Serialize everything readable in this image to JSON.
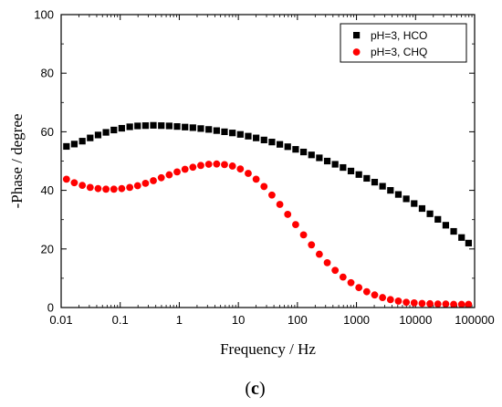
{
  "chart_data": {
    "type": "scatter",
    "x_scale": "log",
    "xlabel": "Frequency / Hz",
    "ylabel": "-Phase / degree",
    "xlim": [
      0.01,
      100000
    ],
    "ylim": [
      0,
      100
    ],
    "x_ticks": [
      0.01,
      0.1,
      1,
      10,
      100,
      1000,
      10000,
      100000
    ],
    "x_tick_labels": [
      "0.01",
      "0.1",
      "1",
      "10",
      "100",
      "1000",
      "10000",
      "100000"
    ],
    "y_ticks": [
      0,
      20,
      40,
      60,
      80,
      100
    ],
    "y_tick_labels": [
      "0",
      "20",
      "40",
      "60",
      "80",
      "100"
    ],
    "grid": false,
    "legend_position": "top-right",
    "panel_label": {
      "open": "(",
      "letter": "c",
      "close": ")"
    },
    "series": [
      {
        "name": "pH=3, HCO",
        "marker": "square",
        "color": "#000000",
        "x": [
          0.0123,
          0.0167,
          0.0228,
          0.031,
          0.0422,
          0.0574,
          0.0781,
          0.106,
          0.145,
          0.197,
          0.268,
          0.364,
          0.496,
          0.675,
          0.918,
          1.25,
          1.7,
          2.31,
          3.15,
          4.29,
          5.83,
          7.94,
          10.8,
          14.7,
          20.0,
          27.2,
          37.0,
          50.4,
          68.5,
          93.3,
          127,
          173,
          235,
          320,
          435,
          592,
          806,
          1097,
          1492,
          2031,
          2763,
          3760,
          5117,
          6963,
          9475,
          12893,
          17544,
          23873,
          32486,
          44206,
          60153,
          79000
        ],
        "y": [
          55.0,
          55.8,
          56.8,
          57.9,
          58.9,
          59.8,
          60.6,
          61.2,
          61.7,
          62.0,
          62.1,
          62.2,
          62.1,
          62.0,
          61.8,
          61.6,
          61.4,
          61.1,
          60.8,
          60.4,
          60.0,
          59.6,
          59.1,
          58.5,
          57.9,
          57.2,
          56.5,
          55.7,
          54.9,
          54.0,
          53.1,
          52.1,
          51.1,
          50.0,
          48.9,
          47.8,
          46.6,
          45.4,
          44.1,
          42.8,
          41.4,
          40.0,
          38.6,
          37.1,
          35.5,
          33.8,
          32.0,
          30.1,
          28.1,
          26.0,
          23.9,
          22.0
        ]
      },
      {
        "name": "pH=3, CHQ",
        "marker": "circle",
        "color": "#ff0000",
        "x": [
          0.0123,
          0.0167,
          0.0228,
          0.031,
          0.0422,
          0.0574,
          0.0781,
          0.106,
          0.145,
          0.197,
          0.268,
          0.364,
          0.496,
          0.675,
          0.918,
          1.25,
          1.7,
          2.31,
          3.15,
          4.29,
          5.83,
          7.94,
          10.8,
          14.7,
          20.0,
          27.2,
          37.0,
          50.4,
          68.5,
          93.3,
          127,
          173,
          235,
          320,
          435,
          592,
          806,
          1097,
          1492,
          2031,
          2763,
          3760,
          5117,
          6963,
          9475,
          12893,
          17544,
          23873,
          32486,
          44206,
          60153,
          79000
        ],
        "y": [
          43.8,
          42.6,
          41.7,
          41.0,
          40.6,
          40.4,
          40.4,
          40.6,
          41.0,
          41.6,
          42.4,
          43.3,
          44.3,
          45.3,
          46.3,
          47.2,
          47.9,
          48.5,
          48.9,
          49.0,
          48.8,
          48.3,
          47.3,
          45.8,
          43.8,
          41.3,
          38.4,
          35.2,
          31.8,
          28.3,
          24.8,
          21.4,
          18.2,
          15.3,
          12.7,
          10.4,
          8.5,
          6.8,
          5.4,
          4.3,
          3.4,
          2.7,
          2.2,
          1.8,
          1.6,
          1.4,
          1.3,
          1.2,
          1.2,
          1.1,
          1.1,
          1.1
        ]
      }
    ]
  }
}
